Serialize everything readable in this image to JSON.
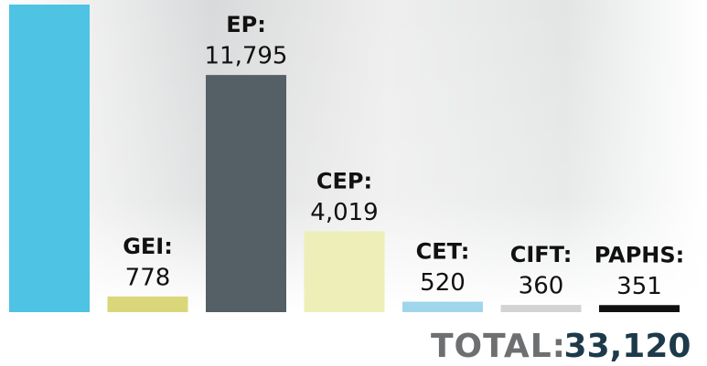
{
  "chart_data": {
    "type": "bar",
    "categories": [
      null,
      "GEI:",
      "EP:",
      "CEP:",
      "CET:",
      "CIFT:",
      "PAPHS:"
    ],
    "values": [
      15297,
      778,
      11795,
      4019,
      520,
      360,
      351
    ],
    "value_labels": [
      null,
      "778",
      "11,795",
      "4,019",
      "520",
      "360",
      "351"
    ],
    "colors": [
      "#4ec3e3",
      "#d9d77a",
      "#545f66",
      "#eeeeb8",
      "#9fd6ec",
      "#d3d3d3",
      "#111111"
    ],
    "total_text": "TOTAL:",
    "total": 33120,
    "total_value_label": "33,120"
  }
}
